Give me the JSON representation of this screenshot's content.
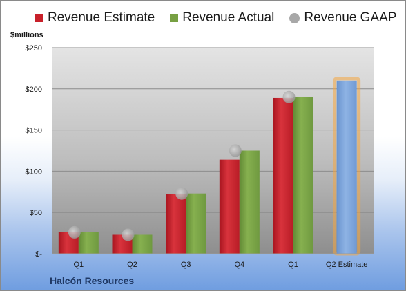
{
  "chart_data": {
    "type": "bar",
    "ylabel": "$millions",
    "caption": "Halcón Resources",
    "categories": [
      "Q1",
      "Q2",
      "Q3",
      "Q4",
      "Q1",
      "Q2 Estimate"
    ],
    "series": [
      {
        "name": "Revenue Estimate",
        "color": "#c8202a",
        "values": [
          26,
          23,
          72,
          114,
          189,
          null
        ]
      },
      {
        "name": "Revenue Actual",
        "color": "#77a043",
        "values": [
          26,
          23,
          73,
          125,
          190,
          null
        ]
      },
      {
        "name": "Revenue GAAP",
        "color": "#a8a8a8",
        "marker": "circle",
        "values": [
          26,
          23,
          73,
          125,
          190,
          null
        ]
      }
    ],
    "forecast": {
      "category": "Q2 Estimate",
      "value": 210,
      "color": "#7aa3d9",
      "highlight": "#f4a640"
    },
    "ylim": [
      0,
      250
    ],
    "yticks": [
      0,
      50,
      100,
      150,
      200,
      250
    ],
    "ytick_labels": [
      "$-",
      "$50",
      "$100",
      "$150",
      "$200",
      "$250"
    ],
    "grid": true,
    "legend": "top"
  }
}
